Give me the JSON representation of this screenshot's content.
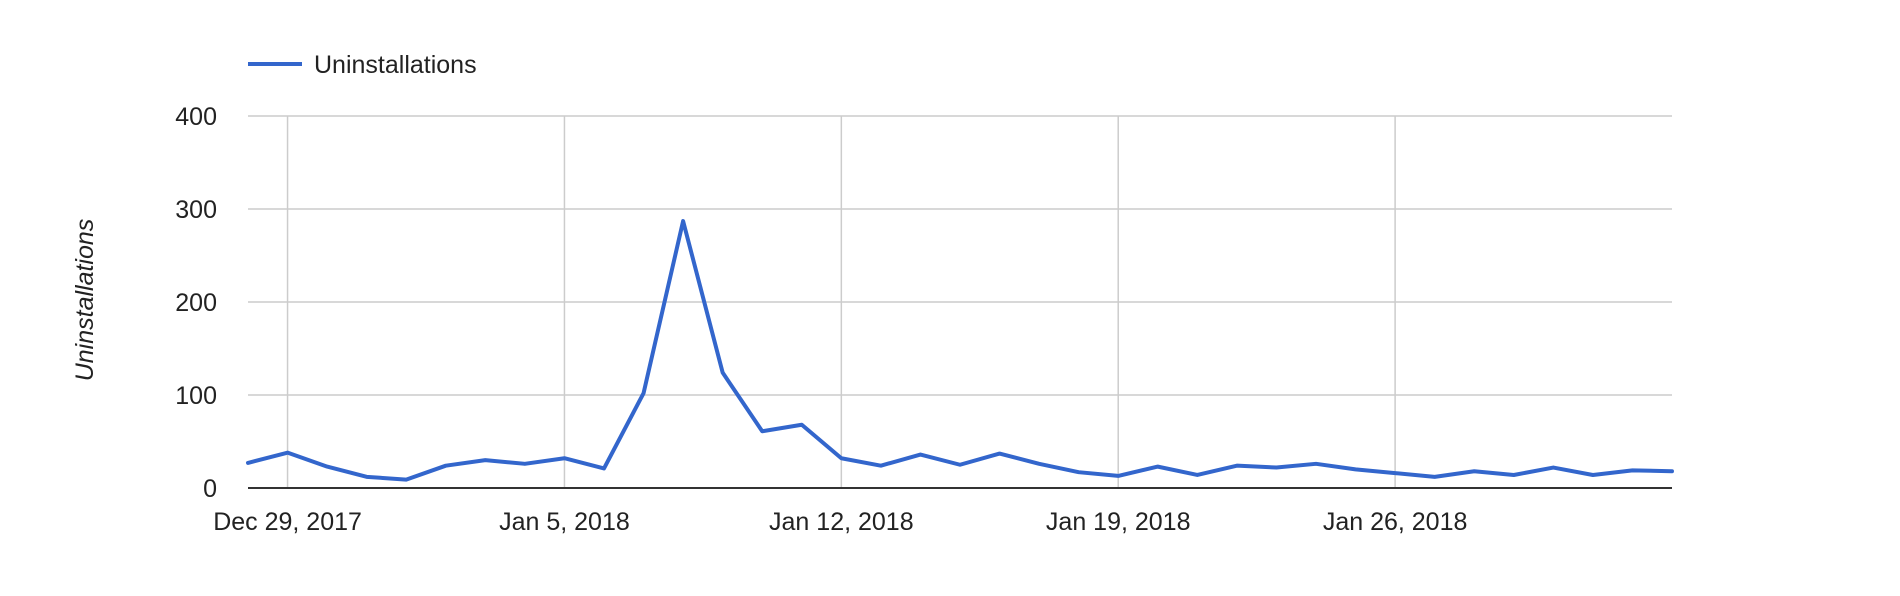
{
  "chart_data": {
    "type": "line",
    "ylabel": "Uninstallations",
    "ylim": [
      0,
      400
    ],
    "yticks": [
      0,
      100,
      200,
      300,
      400
    ],
    "x_tick_labels": [
      {
        "date": "2017-12-29",
        "label": "Dec 29, 2017"
      },
      {
        "date": "2018-01-05",
        "label": "Jan 5, 2018"
      },
      {
        "date": "2018-01-12",
        "label": "Jan 12, 2018"
      },
      {
        "date": "2018-01-19",
        "label": "Jan 19, 2018"
      },
      {
        "date": "2018-01-26",
        "label": "Jan 26, 2018"
      }
    ],
    "xlim": [
      "2017-12-28",
      "2018-02-02"
    ],
    "grid": true,
    "legend_position": "top-left",
    "series": [
      {
        "name": "Uninstallations",
        "color": "#3366cc",
        "x": [
          "2017-12-28",
          "2017-12-29",
          "2017-12-30",
          "2017-12-31",
          "2018-01-01",
          "2018-01-02",
          "2018-01-03",
          "2018-01-04",
          "2018-01-05",
          "2018-01-06",
          "2018-01-07",
          "2018-01-08",
          "2018-01-09",
          "2018-01-10",
          "2018-01-11",
          "2018-01-12",
          "2018-01-13",
          "2018-01-14",
          "2018-01-15",
          "2018-01-16",
          "2018-01-17",
          "2018-01-18",
          "2018-01-19",
          "2018-01-20",
          "2018-01-21",
          "2018-01-22",
          "2018-01-23",
          "2018-01-24",
          "2018-01-25",
          "2018-01-26",
          "2018-01-27",
          "2018-01-28",
          "2018-01-29",
          "2018-01-30",
          "2018-01-31",
          "2018-02-01",
          "2018-02-02"
        ],
        "values": [
          27,
          38,
          23,
          12,
          9,
          24,
          30,
          26,
          32,
          21,
          102,
          287,
          124,
          61,
          68,
          32,
          24,
          36,
          25,
          37,
          26,
          17,
          13,
          23,
          14,
          24,
          22,
          26,
          20,
          16,
          12,
          18,
          14,
          22,
          14,
          19,
          18
        ]
      }
    ]
  }
}
